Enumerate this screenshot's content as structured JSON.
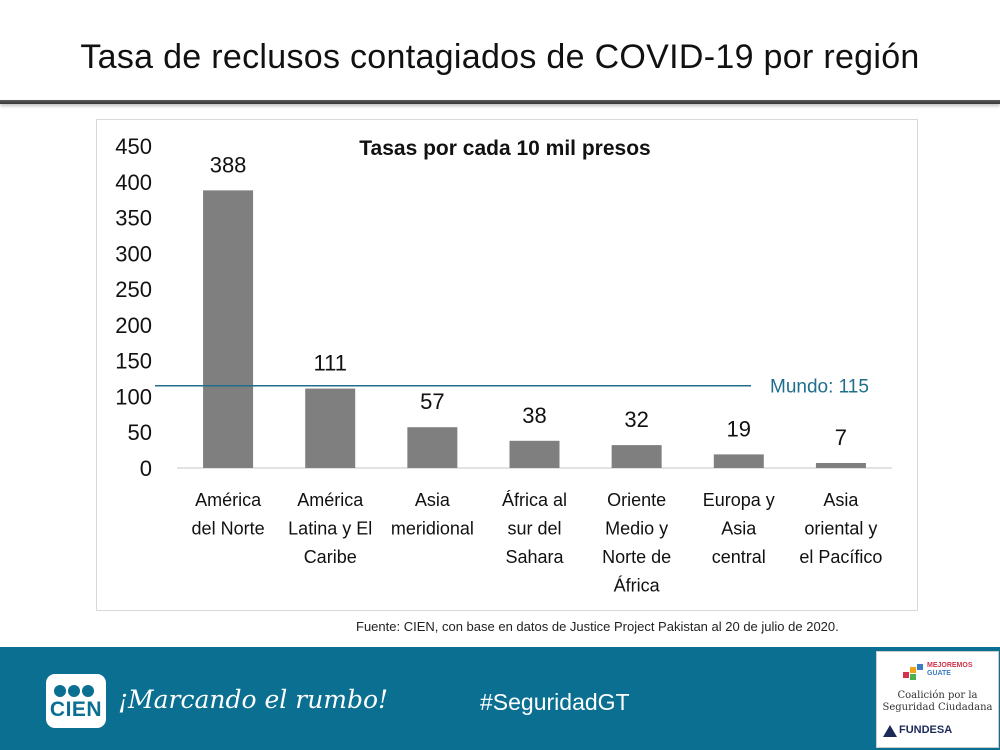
{
  "slide": {
    "title": "Tasa de reclusos contagiados de COVID-19 por región",
    "source": "Fuente: CIEN, con base en datos de Justice Project Pakistan al 20 de julio de 2020."
  },
  "chart_data": {
    "type": "bar",
    "title": "Tasas por cada 10 mil presos",
    "categories": [
      [
        "América",
        "del Norte"
      ],
      [
        "América",
        "Latina y El",
        "Caribe"
      ],
      [
        "Asia",
        "meridional"
      ],
      [
        "África al",
        "sur del",
        "Sahara"
      ],
      [
        "Oriente",
        "Medio y",
        "Norte de",
        "África"
      ],
      [
        "Europa y",
        "Asia",
        "central"
      ],
      [
        "Asia",
        "oriental y",
        "el Pacífico"
      ]
    ],
    "values": [
      388,
      111,
      57,
      38,
      32,
      19,
      7
    ],
    "ylim": [
      0,
      450
    ],
    "yticks": [
      0,
      50,
      100,
      150,
      200,
      250,
      300,
      350,
      400,
      450
    ],
    "reference_line": {
      "label": "Mundo: 115",
      "value": 115,
      "color": "#1f6f8b"
    },
    "bar_color": "#7f7f7f"
  },
  "footer": {
    "logo_text": "CIEN",
    "slogan": "¡Marcando el rumbo!",
    "hashtag": "#SeguridadGT",
    "partner_brand_a": "MEJOREMOS",
    "partner_brand_b": "GUATE",
    "partner_line1": "Coalición por la",
    "partner_line2": "Seguridad Ciudadana",
    "partner_name": "FUNDESA",
    "color": "#0a6f91"
  }
}
